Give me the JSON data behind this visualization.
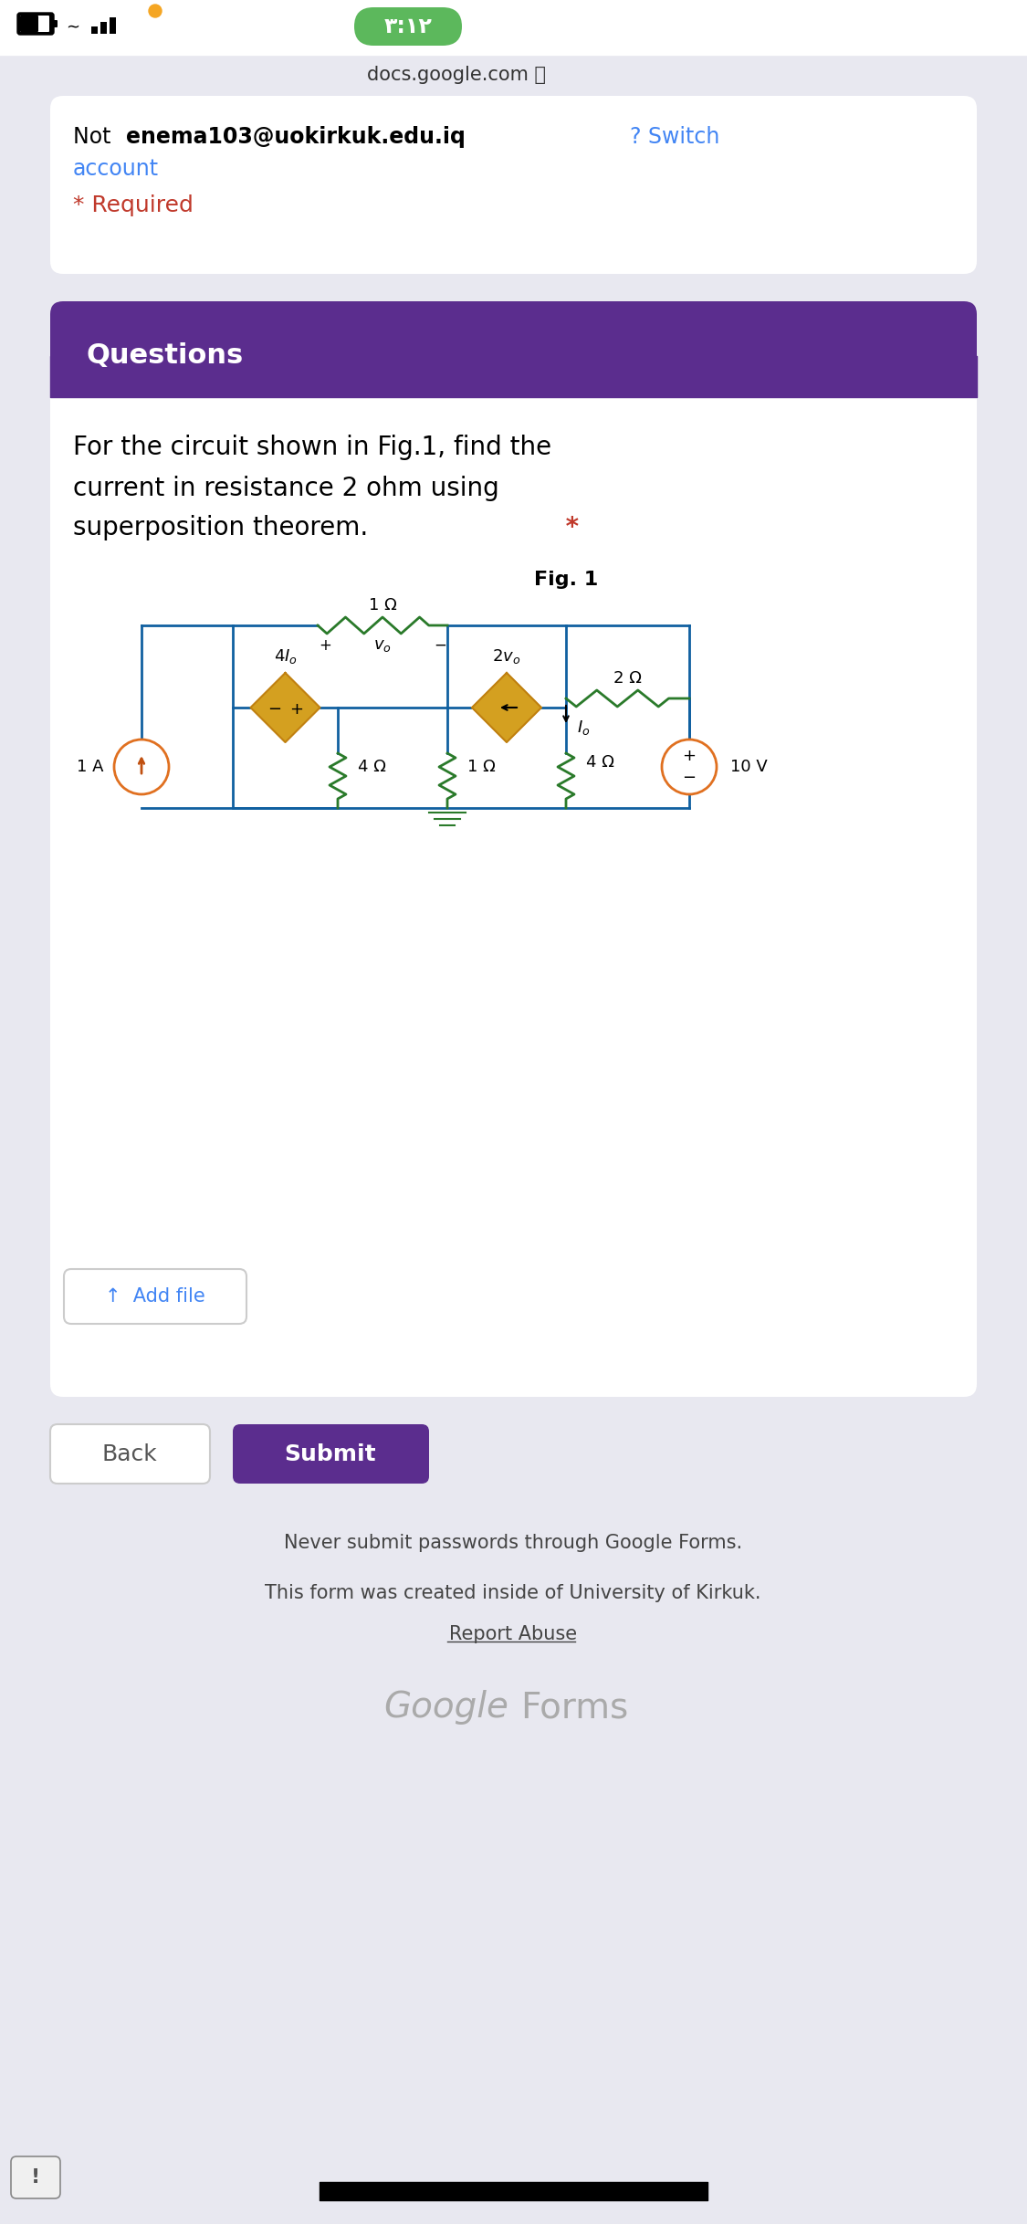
{
  "bg_color": "#e8e8f0",
  "status_time": "٣:١٢",
  "status_time_bg": "#5cb85c",
  "switch_color": "#4285f4",
  "required_color": "#c0392b",
  "questions_header_bg": "#5b2d8e",
  "asterisk_color": "#c0392b",
  "submit_bg": "#5b2d8e",
  "footer_text1": "Never submit passwords through Google Forms.",
  "footer_text2": "This form was created inside of University of Kirkuk.",
  "footer_text3": "Report Abuse",
  "google_forms_text": "Google Forms"
}
